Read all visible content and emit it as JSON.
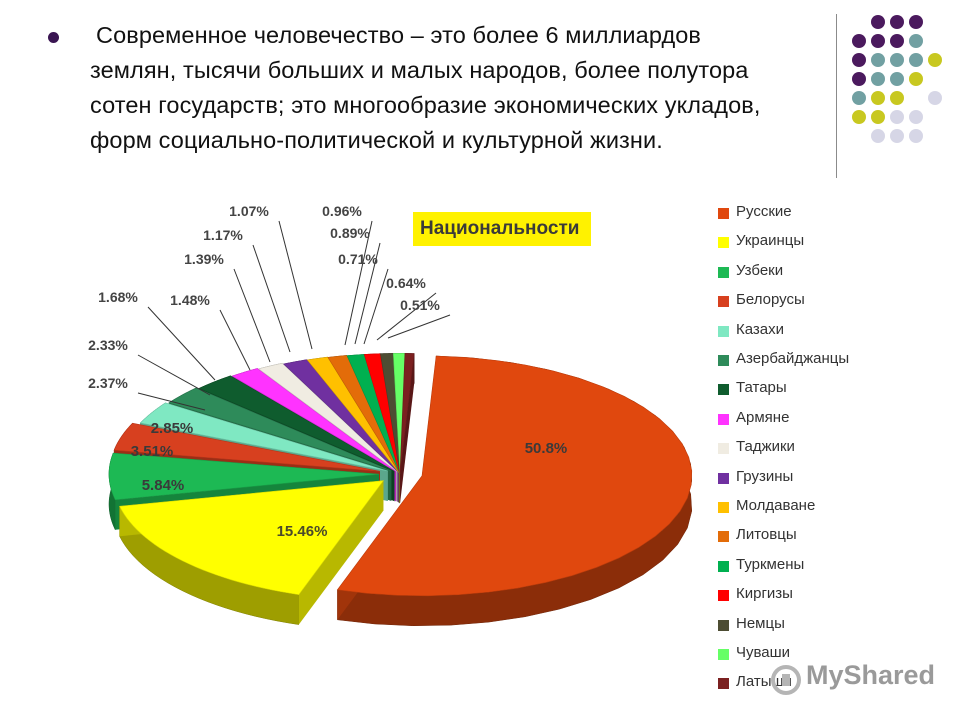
{
  "bullet": {
    "text": "Современное человечество – это более 6 миллиардов землян, тысячи больших и малых народов, более полутора сотен государств; это многообразие экономических укладов, форм социально-политической и культурной жизни."
  },
  "decor": {
    "dot_colors": [
      "#4b1a5e",
      "#71a0a2",
      "#c8c820",
      "#d6d6e6"
    ]
  },
  "watermark": {
    "text": "MyShared"
  },
  "chart_data": {
    "type": "pie",
    "title": "Национальности",
    "style": "3d-exploded",
    "legend_position": "right",
    "categories": [
      "Русские",
      "Украинцы",
      "Узбеки",
      "Белорусы",
      "Казахи",
      "Азербайджанцы",
      "Татары",
      "Армяне",
      "Таджики",
      "Грузины",
      "Молдаване",
      "Литовцы",
      "Туркмены",
      "Киргизы",
      "Немцы",
      "Чуваши",
      "Латыши"
    ],
    "values": [
      50.8,
      15.46,
      5.84,
      3.51,
      2.85,
      2.37,
      2.33,
      1.68,
      1.48,
      1.39,
      1.17,
      1.07,
      0.96,
      0.89,
      0.71,
      0.64,
      0.51
    ],
    "labels": [
      "50.8%",
      "15.46%",
      "5.84%",
      "3.51%",
      "2.85%",
      "2.37%",
      "2.33%",
      "1.68%",
      "1.48%",
      "1.39%",
      "1.17%",
      "1.07%",
      "0.96%",
      "0.89%",
      "0.71%",
      "0.64%",
      "0.51%"
    ],
    "colors": [
      "#e0480e",
      "#ffff00",
      "#1db954",
      "#d7401f",
      "#7fe8c2",
      "#2e8b5a",
      "#0f5c2e",
      "#ff33ff",
      "#f0ece2",
      "#7030a0",
      "#ffc000",
      "#e36c09",
      "#00b050",
      "#ff0000",
      "#4d4d33",
      "#66ff66",
      "#7b2020"
    ]
  }
}
